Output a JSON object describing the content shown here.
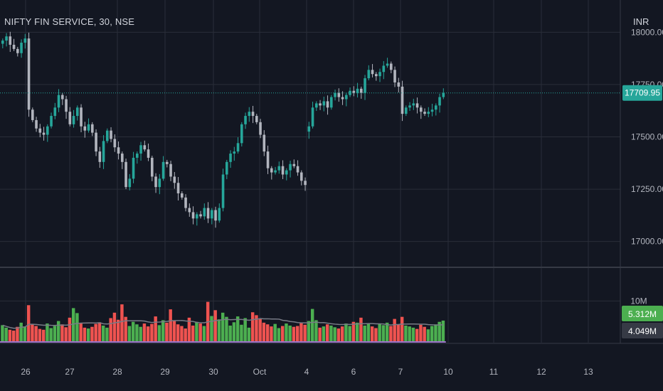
{
  "header": {
    "symbol": "NIFTY FIN SERVICE, 30, NSE",
    "currency": "INR"
  },
  "colors": {
    "background": "#131722",
    "grid": "#2a2e39",
    "text": "#b2b5be",
    "up": "#26a69a",
    "down": "#b2b5be",
    "vol_up": "#4caf50",
    "vol_down": "#ef5350",
    "price_line": "#26a69a",
    "vol_ma": "#787b86",
    "vol_base": "#9c74c8"
  },
  "chart_data": [
    {
      "type": "candlestick",
      "ylim": [
        16880,
        18120
      ],
      "yticks": [
        17000,
        17250,
        17500,
        17750,
        18000
      ],
      "ytick_labels": [
        "17000.00",
        "17250.00",
        "17500.00",
        "17750.00",
        "18000.00"
      ],
      "last_price": 17709.95,
      "last_price_label": "17709.95",
      "x_labels": [
        "26",
        "27",
        "28",
        "29",
        "30",
        "Oct",
        "4",
        "6",
        "7",
        "10",
        "11",
        "12",
        "13"
      ],
      "close": [
        17960,
        17980,
        17940,
        17920,
        17900,
        17950,
        17970,
        17630,
        17580,
        17540,
        17520,
        17510,
        17550,
        17600,
        17640,
        17700,
        17680,
        17620,
        17560,
        17600,
        17640,
        17550,
        17530,
        17560,
        17520,
        17430,
        17380,
        17480,
        17530,
        17490,
        17450,
        17420,
        17380,
        17260,
        17300,
        17400,
        17420,
        17460,
        17440,
        17400,
        17310,
        17260,
        17300,
        17380,
        17370,
        17310,
        17280,
        17230,
        17210,
        17160,
        17140,
        17110,
        17130,
        17120,
        17160,
        17110,
        17150,
        17100,
        17160,
        17320,
        17380,
        17420,
        17430,
        17470,
        17560,
        17600,
        17620,
        17600,
        17570,
        17510,
        17430,
        17350,
        17330,
        17340,
        17360,
        17320,
        17340,
        17370,
        17360,
        17330,
        17290,
        17270,
        17550,
        17640,
        17660,
        17650,
        17670,
        17640,
        17690,
        17710,
        17690,
        17680,
        17700,
        17720,
        17710,
        17730,
        17710,
        17780,
        17820,
        17800,
        17790,
        17810,
        17840,
        17850,
        17820,
        17760,
        17740,
        17610,
        17640,
        17650,
        17660,
        17640,
        17620,
        17610,
        17620,
        17630,
        17650,
        17690,
        17710
      ],
      "series": [
        {
          "name": "Volume",
          "unit": "M",
          "last_label": "5.312M",
          "values": [
            4.2,
            3.6,
            3.1,
            2.9,
            3.8,
            4.8,
            3.9,
            9.0,
            4.4,
            4.0,
            3.3,
            3.1,
            4.6,
            3.5,
            4.0,
            5.2,
            4.4,
            3.7,
            6.0,
            8.3,
            7.1,
            4.6,
            3.6,
            3.4,
            3.8,
            4.5,
            4.9,
            4.1,
            3.6,
            5.9,
            7.2,
            5.5,
            9.2,
            6.2,
            4.0,
            5.0,
            4.4,
            3.8,
            4.6,
            3.9,
            4.5,
            6.3,
            4.2,
            5.4,
            4.8,
            8.0,
            5.2,
            4.4,
            4.0,
            3.4,
            6.0,
            4.1,
            5.0,
            4.6,
            4.0,
            9.8,
            6.4,
            7.8,
            5.6,
            7.2,
            6.2,
            4.1,
            4.9,
            6.3,
            4.3,
            5.9,
            3.6,
            7.3,
            6.6,
            5.8,
            4.8,
            4.4,
            3.9,
            4.5,
            3.5,
            4.0,
            4.6,
            4.1,
            3.8,
            4.0,
            4.7,
            4.3,
            5.2,
            8.1,
            5.4,
            3.6,
            3.9,
            4.4,
            4.1,
            3.7,
            3.4,
            3.9,
            4.6,
            4.0,
            5.0,
            4.8,
            6.0,
            4.1,
            4.6,
            3.9,
            3.5,
            4.5,
            4.2,
            4.8,
            4.0,
            5.7,
            4.3,
            6.2,
            4.1,
            3.9,
            3.6,
            3.3,
            4.3,
            3.8,
            3.2,
            4.0,
            4.4,
            5.0,
            5.3
          ]
        },
        {
          "name": "Volume MA",
          "unit": "M",
          "last_label": "4.049M",
          "values": []
        }
      ],
      "volume_ylim": [
        0,
        14
      ],
      "volume_ticks": [
        "10M"
      ]
    }
  ]
}
